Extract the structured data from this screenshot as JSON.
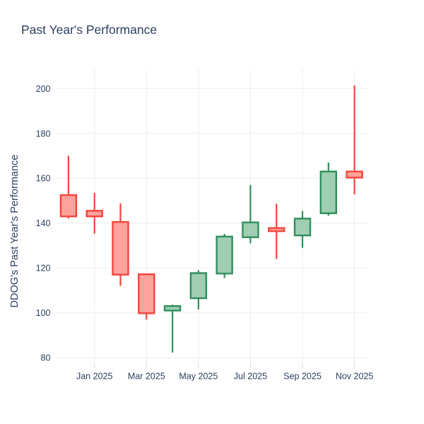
{
  "chart_data": {
    "type": "candlestick",
    "title": "Past Year's Performance",
    "xlabel": "",
    "ylabel": "DDOG's Past Year's Performance",
    "legend": "none",
    "grid": true,
    "categories": [
      "Dec 2024",
      "Jan 2025",
      "Feb 2025",
      "Mar 2025",
      "Apr 2025",
      "May 2025",
      "Jun 2025",
      "Jul 2025",
      "Aug 2025",
      "Sep 2025",
      "Oct 2025",
      "Nov 2025"
    ],
    "ohlc": [
      {
        "x": "Dec 2024",
        "open": 152.5,
        "high": 170.0,
        "low": 142.0,
        "close": 143.0
      },
      {
        "x": "Jan 2025",
        "open": 145.5,
        "high": 153.5,
        "low": 135.3,
        "close": 143.0
      },
      {
        "x": "Feb 2025",
        "open": 140.5,
        "high": 148.8,
        "low": 112.0,
        "close": 117.0
      },
      {
        "x": "Mar 2025",
        "open": 117.2,
        "high": 117.5,
        "low": 97.0,
        "close": 99.8
      },
      {
        "x": "Apr 2025",
        "open": 101.0,
        "high": 103.6,
        "low": 82.3,
        "close": 103.0
      },
      {
        "x": "May 2025",
        "open": 106.5,
        "high": 119.0,
        "low": 101.5,
        "close": 117.7
      },
      {
        "x": "Jun 2025",
        "open": 117.5,
        "high": 135.2,
        "low": 115.5,
        "close": 134.0
      },
      {
        "x": "Jul 2025",
        "open": 133.7,
        "high": 157.0,
        "low": 131.0,
        "close": 140.3
      },
      {
        "x": "Aug 2025",
        "open": 137.8,
        "high": 148.6,
        "low": 124.0,
        "close": 136.4
      },
      {
        "x": "Sep 2025",
        "open": 134.5,
        "high": 145.4,
        "low": 129.0,
        "close": 142.0
      },
      {
        "x": "Oct 2025",
        "open": 144.4,
        "high": 167.0,
        "low": 143.3,
        "close": 163.0
      },
      {
        "x": "Nov 2025",
        "open": 163.0,
        "high": 201.4,
        "low": 152.8,
        "close": 160.3
      }
    ],
    "y_ticks": [
      80,
      100,
      120,
      140,
      160,
      180,
      200
    ],
    "ylim": [
      77.2,
      208.6
    ],
    "x_tick_labels": [
      "Jan 2025",
      "Mar 2025",
      "May 2025",
      "Jul 2025",
      "Sep 2025",
      "Nov 2025"
    ],
    "x_tick_indices": [
      1,
      3,
      5,
      7,
      9,
      11
    ],
    "colors": {
      "increasing_line": "#2f8f5b",
      "increasing_fill": "#a0ceb3",
      "decreasing_line": "#f4453c",
      "decreasing_fill": "#fda29c",
      "grid": "#e9edf4",
      "tick": "#c9d4e4",
      "axis_text": "#2a3f5f",
      "title_text": "#2a3f5f",
      "background": "#ffffff"
    }
  }
}
